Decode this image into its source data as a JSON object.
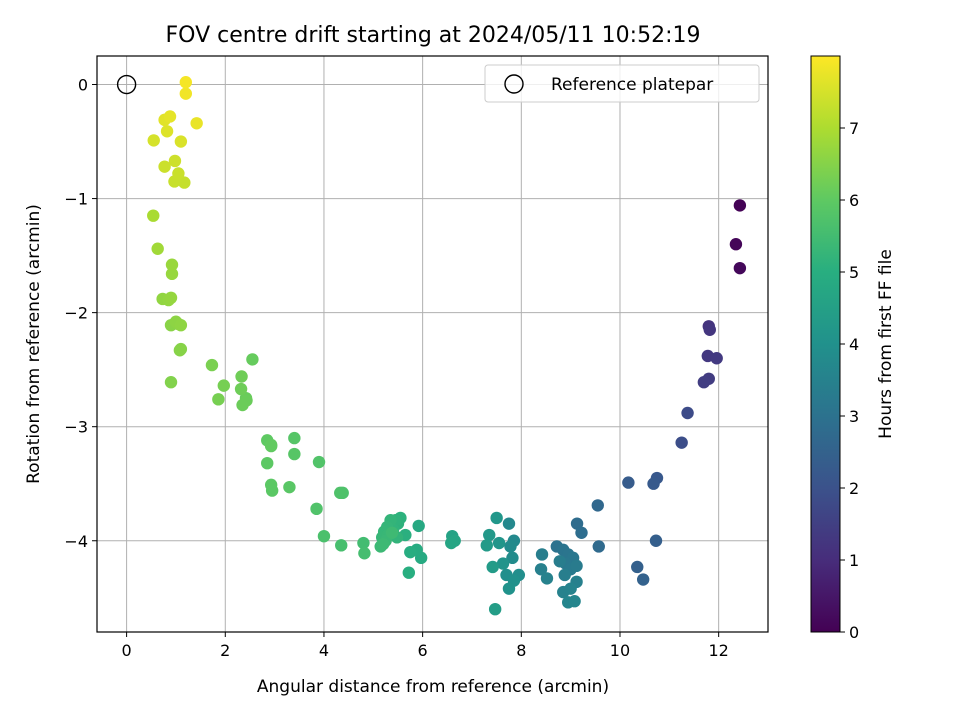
{
  "chart_data": {
    "type": "scatter",
    "title": "FOV centre drift starting at 2024/05/11 10:52:19",
    "xlabel": "Angular distance from reference (arcmin)",
    "ylabel": "Rotation from reference (arcmin)",
    "colorbar_label": "Hours from first FF file",
    "xlim": [
      -0.6,
      13.0
    ],
    "ylim": [
      -4.8,
      0.25
    ],
    "x_ticks": [
      0,
      2,
      4,
      6,
      8,
      10,
      12
    ],
    "y_ticks": [
      0,
      -1,
      -2,
      -3,
      -4
    ],
    "colorbar_range": [
      0,
      8
    ],
    "colorbar_ticks": [
      0,
      1,
      2,
      3,
      4,
      5,
      6,
      7
    ],
    "colormap": "viridis",
    "grid": true,
    "legend_position": "top-right",
    "legend_label": "Reference platepar",
    "reference_point": {
      "x": 0,
      "y": 0
    },
    "points": [
      [
        12.43,
        -1.06,
        0.05
      ],
      [
        12.35,
        -1.4,
        0.1
      ],
      [
        12.43,
        -1.61,
        0.15
      ],
      [
        11.8,
        -2.12,
        1.2
      ],
      [
        11.82,
        -2.15,
        1.25
      ],
      [
        11.78,
        -2.38,
        1.3
      ],
      [
        11.96,
        -2.4,
        1.35
      ],
      [
        11.8,
        -2.58,
        1.4
      ],
      [
        11.7,
        -2.61,
        1.45
      ],
      [
        11.37,
        -2.88,
        1.8
      ],
      [
        11.25,
        -3.14,
        1.9
      ],
      [
        10.75,
        -3.45,
        2.2
      ],
      [
        10.68,
        -3.5,
        2.25
      ],
      [
        10.17,
        -3.49,
        2.3
      ],
      [
        10.73,
        -4.0,
        2.4
      ],
      [
        10.35,
        -4.23,
        2.45
      ],
      [
        10.47,
        -4.34,
        2.5
      ],
      [
        9.55,
        -3.69,
        2.7
      ],
      [
        9.57,
        -4.05,
        2.75
      ],
      [
        9.13,
        -3.85,
        2.8
      ],
      [
        9.22,
        -3.93,
        2.85
      ],
      [
        8.72,
        -4.05,
        3.0
      ],
      [
        8.85,
        -4.08,
        3.05
      ],
      [
        8.95,
        -4.12,
        3.1
      ],
      [
        9.05,
        -4.15,
        3.15
      ],
      [
        8.9,
        -4.2,
        3.2
      ],
      [
        9.0,
        -4.25,
        3.25
      ],
      [
        9.12,
        -4.22,
        3.3
      ],
      [
        8.78,
        -4.18,
        3.35
      ],
      [
        8.88,
        -4.3,
        3.4
      ],
      [
        9.12,
        -4.36,
        3.45
      ],
      [
        8.85,
        -4.45,
        3.5
      ],
      [
        9.0,
        -4.42,
        3.55
      ],
      [
        8.95,
        -4.54,
        3.6
      ],
      [
        9.08,
        -4.53,
        3.65
      ],
      [
        8.42,
        -4.12,
        3.4
      ],
      [
        8.4,
        -4.25,
        3.45
      ],
      [
        8.52,
        -4.33,
        3.5
      ],
      [
        7.75,
        -3.85,
        3.7
      ],
      [
        7.85,
        -4.0,
        3.75
      ],
      [
        7.78,
        -4.05,
        3.8
      ],
      [
        7.82,
        -4.15,
        3.85
      ],
      [
        7.95,
        -4.3,
        3.9
      ],
      [
        7.7,
        -4.3,
        3.95
      ],
      [
        7.85,
        -4.35,
        4.0
      ],
      [
        7.75,
        -4.42,
        4.05
      ],
      [
        7.63,
        -4.2,
        4.1
      ],
      [
        7.55,
        -4.02,
        4.15
      ],
      [
        7.5,
        -3.8,
        4.2
      ],
      [
        7.35,
        -3.95,
        4.25
      ],
      [
        7.3,
        -4.04,
        4.3
      ],
      [
        7.42,
        -4.23,
        4.35
      ],
      [
        7.47,
        -4.6,
        4.4
      ],
      [
        6.6,
        -3.96,
        4.6
      ],
      [
        6.65,
        -4.0,
        4.65
      ],
      [
        6.58,
        -4.02,
        4.7
      ],
      [
        5.92,
        -3.87,
        4.8
      ],
      [
        5.97,
        -4.15,
        4.85
      ],
      [
        5.88,
        -4.08,
        4.9
      ],
      [
        5.75,
        -4.1,
        4.95
      ],
      [
        5.72,
        -4.28,
        5.0
      ],
      [
        5.65,
        -3.95,
        5.05
      ],
      [
        5.55,
        -3.8,
        5.1
      ],
      [
        5.5,
        -3.85,
        5.12
      ],
      [
        5.45,
        -3.82,
        5.15
      ],
      [
        5.4,
        -3.9,
        5.18
      ],
      [
        5.48,
        -3.97,
        5.2
      ],
      [
        5.35,
        -3.82,
        5.22
      ],
      [
        5.28,
        -3.88,
        5.25
      ],
      [
        5.22,
        -3.92,
        5.28
      ],
      [
        5.18,
        -3.97,
        5.3
      ],
      [
        5.3,
        -3.95,
        5.32
      ],
      [
        5.25,
        -4.0,
        5.35
      ],
      [
        5.15,
        -4.05,
        5.38
      ],
      [
        5.2,
        -4.03,
        5.4
      ],
      [
        5.38,
        -3.93,
        5.42
      ],
      [
        4.8,
        -4.02,
        5.5
      ],
      [
        4.82,
        -4.11,
        5.55
      ],
      [
        4.35,
        -4.04,
        5.6
      ],
      [
        4.0,
        -3.96,
        5.65
      ],
      [
        4.38,
        -3.58,
        5.7
      ],
      [
        4.33,
        -3.58,
        5.72
      ],
      [
        3.85,
        -3.72,
        5.75
      ],
      [
        3.9,
        -3.31,
        5.78
      ],
      [
        3.4,
        -3.1,
        5.85
      ],
      [
        3.4,
        -3.24,
        5.87
      ],
      [
        3.3,
        -3.53,
        5.9
      ],
      [
        2.95,
        -3.56,
        5.92
      ],
      [
        2.93,
        -3.51,
        5.95
      ],
      [
        2.85,
        -3.32,
        5.97
      ],
      [
        2.85,
        -3.12,
        6.0
      ],
      [
        2.93,
        -3.17,
        6.02
      ],
      [
        2.93,
        -3.16,
        6.05
      ],
      [
        2.55,
        -2.41,
        6.1
      ],
      [
        2.42,
        -2.75,
        6.12
      ],
      [
        2.43,
        -2.77,
        6.15
      ],
      [
        2.35,
        -2.81,
        6.17
      ],
      [
        2.32,
        -2.67,
        6.2
      ],
      [
        2.33,
        -2.56,
        6.22
      ],
      [
        1.97,
        -2.64,
        6.3
      ],
      [
        1.86,
        -2.76,
        6.32
      ],
      [
        1.73,
        -2.46,
        6.35
      ],
      [
        0.9,
        -2.61,
        6.45
      ],
      [
        1.1,
        -2.32,
        6.5
      ],
      [
        1.08,
        -2.33,
        6.52
      ],
      [
        0.9,
        -2.11,
        6.55
      ],
      [
        1.05,
        -2.1,
        6.57
      ],
      [
        1.0,
        -2.08,
        6.6
      ],
      [
        1.1,
        -2.11,
        6.62
      ],
      [
        0.73,
        -1.88,
        6.65
      ],
      [
        0.85,
        -1.89,
        6.67
      ],
      [
        0.9,
        -1.87,
        6.7
      ],
      [
        0.92,
        -1.66,
        6.72
      ],
      [
        0.92,
        -1.58,
        6.75
      ],
      [
        0.63,
        -1.44,
        6.85
      ],
      [
        0.54,
        -1.15,
        6.95
      ],
      [
        1.17,
        -0.86,
        7.3
      ],
      [
        0.97,
        -0.85,
        7.32
      ],
      [
        1.05,
        -0.78,
        7.35
      ],
      [
        0.77,
        -0.72,
        7.38
      ],
      [
        0.98,
        -0.67,
        7.4
      ],
      [
        0.55,
        -0.49,
        7.5
      ],
      [
        1.1,
        -0.5,
        7.55
      ],
      [
        0.82,
        -0.41,
        7.6
      ],
      [
        0.77,
        -0.31,
        7.65
      ],
      [
        0.88,
        -0.28,
        7.7
      ],
      [
        1.42,
        -0.34,
        7.75
      ],
      [
        1.2,
        -0.08,
        7.85
      ],
      [
        1.2,
        0.02,
        7.9
      ]
    ]
  }
}
